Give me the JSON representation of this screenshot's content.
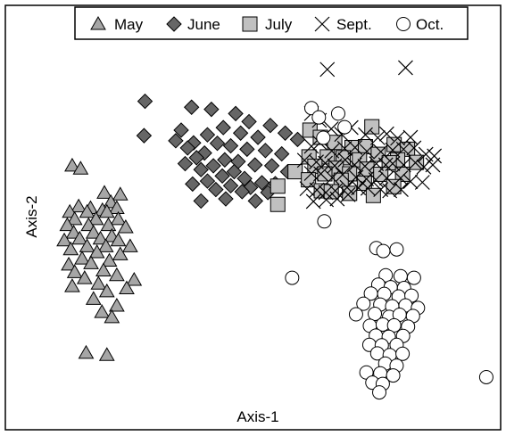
{
  "chart_data": {
    "type": "scatter",
    "xlabel": "Axis-1",
    "ylabel": "Axis-2",
    "xlim": [
      0,
      100
    ],
    "ylim": [
      0,
      100
    ],
    "grid": false,
    "legend_position": "top",
    "series": [
      {
        "name": "May",
        "marker": "triangle",
        "color": "#a6a6a6",
        "points": [
          [
            15.7,
            94.1
          ],
          [
            13.5,
            62.2
          ],
          [
            15.2,
            61.5
          ],
          [
            20,
            55.8
          ],
          [
            23.2,
            55.4
          ],
          [
            21.3,
            53.6
          ],
          [
            14.8,
            52.6
          ],
          [
            17.2,
            52.2
          ],
          [
            22.5,
            52.2
          ],
          [
            19.6,
            51.7
          ],
          [
            13,
            51.3
          ],
          [
            16.5,
            51.3
          ],
          [
            20.5,
            51.3
          ],
          [
            14,
            49.6
          ],
          [
            18.3,
            49.6
          ],
          [
            22.8,
            49.6
          ],
          [
            12.5,
            48.2
          ],
          [
            16.8,
            48.2
          ],
          [
            20.8,
            48.2
          ],
          [
            24.3,
            47.7
          ],
          [
            13.8,
            46.4
          ],
          [
            17.8,
            46.4
          ],
          [
            21.5,
            45.6
          ],
          [
            19.2,
            45
          ],
          [
            15,
            45
          ],
          [
            11.9,
            44.6
          ],
          [
            22.8,
            44.6
          ],
          [
            16.5,
            43.2
          ],
          [
            20.3,
            43.2
          ],
          [
            25.2,
            43.2
          ],
          [
            13.2,
            42.5
          ],
          [
            18.5,
            41.8
          ],
          [
            23.2,
            41.3
          ],
          [
            15.5,
            40.3
          ],
          [
            21,
            39.8
          ],
          [
            12.8,
            38.9
          ],
          [
            17.3,
            39.2
          ],
          [
            19.8,
            37.5
          ],
          [
            14,
            37.1
          ],
          [
            22.5,
            36.4
          ],
          [
            16,
            35.7
          ],
          [
            26,
            35.3
          ],
          [
            18.8,
            34.4
          ],
          [
            13.5,
            33.8
          ],
          [
            24.5,
            33.3
          ],
          [
            20.5,
            32.6
          ],
          [
            17.8,
            30.8
          ],
          [
            22.5,
            29.2
          ],
          [
            19.5,
            27.7
          ],
          [
            21.5,
            26.5
          ],
          [
            16.3,
            18.1
          ],
          [
            20.5,
            17.6
          ]
        ]
      },
      {
        "name": "June",
        "marker": "diamond",
        "color": "#666666",
        "points": [
          [
            28.2,
            77.4
          ],
          [
            28,
            69.3
          ],
          [
            37.6,
            76
          ],
          [
            41.6,
            75.5
          ],
          [
            46.5,
            74.5
          ],
          [
            49.2,
            72.6
          ],
          [
            53.5,
            71.7
          ],
          [
            44,
            71.2
          ],
          [
            35.5,
            70.6
          ],
          [
            47.5,
            69.9
          ],
          [
            40.8,
            69.5
          ],
          [
            56.5,
            69.9
          ],
          [
            51,
            68.9
          ],
          [
            59,
            68.4
          ],
          [
            34.4,
            68.1
          ],
          [
            38,
            67.6
          ],
          [
            42.8,
            67.5
          ],
          [
            45.5,
            66.9
          ],
          [
            36.8,
            66.4
          ],
          [
            48.8,
            66.1
          ],
          [
            52.5,
            65.8
          ],
          [
            40.2,
            65.2
          ],
          [
            55.8,
            65
          ],
          [
            38.6,
            64.1
          ],
          [
            44.3,
            63.6
          ],
          [
            47,
            63.2
          ],
          [
            36.3,
            62.7
          ],
          [
            50.4,
            62.4
          ],
          [
            42,
            62.2
          ],
          [
            53.8,
            62.2
          ],
          [
            39.5,
            61.3
          ],
          [
            46.2,
            60.8
          ],
          [
            57,
            60.8
          ],
          [
            43.8,
            59.8
          ],
          [
            48.3,
            59.2
          ],
          [
            40.8,
            58.6
          ],
          [
            51.8,
            58.2
          ],
          [
            54.5,
            58
          ],
          [
            37.8,
            57.9
          ],
          [
            45.5,
            57.5
          ],
          [
            49.5,
            57.1
          ],
          [
            42.5,
            56.6
          ],
          [
            47.8,
            56.1
          ],
          [
            53,
            55.9
          ],
          [
            44.5,
            54.4
          ],
          [
            39.5,
            53.9
          ],
          [
            50.5,
            53.9
          ]
        ]
      },
      {
        "name": "July",
        "marker": "square",
        "color": "#c0c0c0",
        "points": [
          [
            61.5,
            70.6
          ],
          [
            74,
            71.4
          ],
          [
            63.6,
            68.9
          ],
          [
            66.5,
            67.7
          ],
          [
            78.5,
            67.2
          ],
          [
            70,
            66.5
          ],
          [
            72.7,
            66.7
          ],
          [
            81.2,
            66.1
          ],
          [
            75.3,
            64.9
          ],
          [
            61.3,
            64.3
          ],
          [
            65,
            64.3
          ],
          [
            68.2,
            64.1
          ],
          [
            71.5,
            63.6
          ],
          [
            79.2,
            63.6
          ],
          [
            77.5,
            62.9
          ],
          [
            83,
            63
          ],
          [
            62.5,
            62.1
          ],
          [
            66.8,
            61.6
          ],
          [
            73,
            61.4
          ],
          [
            58.5,
            60.8
          ],
          [
            64.5,
            60.3
          ],
          [
            69.5,
            60.3
          ],
          [
            75.8,
            60.2
          ],
          [
            80.2,
            60.2
          ],
          [
            61.2,
            58.9
          ],
          [
            67.8,
            58.8
          ],
          [
            72.5,
            58.1
          ],
          [
            55,
            57.4
          ],
          [
            78.4,
            57.3
          ],
          [
            63.8,
            56.3
          ],
          [
            65.8,
            56.1
          ],
          [
            69.5,
            55.7
          ],
          [
            74.3,
            55.2
          ],
          [
            55,
            53.1
          ]
        ]
      },
      {
        "name": "Sept.",
        "marker": "x",
        "color": "#000000",
        "points": [
          [
            65,
            84.9
          ],
          [
            80.8,
            85.3
          ],
          [
            61.8,
            74.5
          ],
          [
            63.4,
            72.9
          ],
          [
            65.8,
            70.9
          ],
          [
            67.9,
            69.6
          ],
          [
            69.8,
            71.2
          ],
          [
            72.7,
            69.5
          ],
          [
            75.2,
            68.8
          ],
          [
            77,
            69.7
          ],
          [
            79.2,
            68.7
          ],
          [
            81.8,
            68.9
          ],
          [
            61.8,
            66.8
          ],
          [
            63.5,
            67.6
          ],
          [
            65.9,
            65.7
          ],
          [
            68.5,
            66.3
          ],
          [
            70.6,
            66.5
          ],
          [
            73,
            65.6
          ],
          [
            75.8,
            65.5
          ],
          [
            78.2,
            65.9
          ],
          [
            80.4,
            66.1
          ],
          [
            82.5,
            66.4
          ],
          [
            84.9,
            64.9
          ],
          [
            86.6,
            64.5
          ],
          [
            60.4,
            63.5
          ],
          [
            62.8,
            63.1
          ],
          [
            64.6,
            62.8
          ],
          [
            66.5,
            62.2
          ],
          [
            68.6,
            63.6
          ],
          [
            70.5,
            62.4
          ],
          [
            72.6,
            62.1
          ],
          [
            74.9,
            62.7
          ],
          [
            76.8,
            62.4
          ],
          [
            78.2,
            62.7
          ],
          [
            80.4,
            62.4
          ],
          [
            82.8,
            62.9
          ],
          [
            84.5,
            61.9
          ],
          [
            86.3,
            62.4
          ],
          [
            61.8,
            60.4
          ],
          [
            63.7,
            60.3
          ],
          [
            66,
            59.4
          ],
          [
            68.1,
            60.1
          ],
          [
            70.8,
            59.5
          ],
          [
            72.9,
            59.1
          ],
          [
            74.8,
            58.9
          ],
          [
            77,
            59.3
          ],
          [
            79.8,
            59.3
          ],
          [
            81.8,
            58.5
          ],
          [
            84.2,
            58.3
          ],
          [
            60.9,
            56.8
          ],
          [
            62.9,
            56.5
          ],
          [
            64.7,
            55.9
          ],
          [
            66.6,
            56.3
          ],
          [
            69,
            57.1
          ],
          [
            71.3,
            57
          ],
          [
            73.2,
            56.9
          ],
          [
            75.8,
            56.6
          ],
          [
            77.6,
            56.3
          ],
          [
            79.9,
            56.6
          ],
          [
            62.2,
            53.8
          ],
          [
            64.8,
            54.2
          ],
          [
            67,
            54.4
          ],
          [
            69.2,
            55.4
          ]
        ]
      },
      {
        "name": "Oct.",
        "marker": "circle",
        "color": "#ffffff",
        "points": [
          [
            61.8,
            75.8
          ],
          [
            63.3,
            73.6
          ],
          [
            67.2,
            74.5
          ],
          [
            68.5,
            71.3
          ],
          [
            64.2,
            68.8
          ],
          [
            64.4,
            49.1
          ],
          [
            74.9,
            42.8
          ],
          [
            76.3,
            42.1
          ],
          [
            79,
            42.5
          ],
          [
            57.9,
            35.8
          ],
          [
            76.8,
            36.4
          ],
          [
            79.8,
            36.2
          ],
          [
            82.5,
            35.8
          ],
          [
            75.3,
            34.2
          ],
          [
            77.8,
            33.6
          ],
          [
            80.5,
            33.4
          ],
          [
            73.8,
            32.1
          ],
          [
            76.5,
            32
          ],
          [
            79.4,
            31.4
          ],
          [
            82,
            31.6
          ],
          [
            72.3,
            29.7
          ],
          [
            75.7,
            29.5
          ],
          [
            78.1,
            29.1
          ],
          [
            80.8,
            29.3
          ],
          [
            83.3,
            28.7
          ],
          [
            70.8,
            27.2
          ],
          [
            74.6,
            27.3
          ],
          [
            77.5,
            26.6
          ],
          [
            79.6,
            27.1
          ],
          [
            82.3,
            26.8
          ],
          [
            73.6,
            24.5
          ],
          [
            76.2,
            24.8
          ],
          [
            78.5,
            24.6
          ],
          [
            81.3,
            24.3
          ],
          [
            74.8,
            22.2
          ],
          [
            77.4,
            21.9
          ],
          [
            80.3,
            22.1
          ],
          [
            73.5,
            20
          ],
          [
            76,
            19.9
          ],
          [
            79,
            20
          ],
          [
            75.1,
            18
          ],
          [
            77.6,
            17.6
          ],
          [
            80.2,
            17.9
          ],
          [
            76.7,
            15.6
          ],
          [
            79,
            15.1
          ],
          [
            72.9,
            13.5
          ],
          [
            75.7,
            13.3
          ],
          [
            78.3,
            12.8
          ],
          [
            74.1,
            11.1
          ],
          [
            76.2,
            10.8
          ],
          [
            75.5,
            8.8
          ],
          [
            97.1,
            12.4
          ]
        ]
      }
    ]
  }
}
